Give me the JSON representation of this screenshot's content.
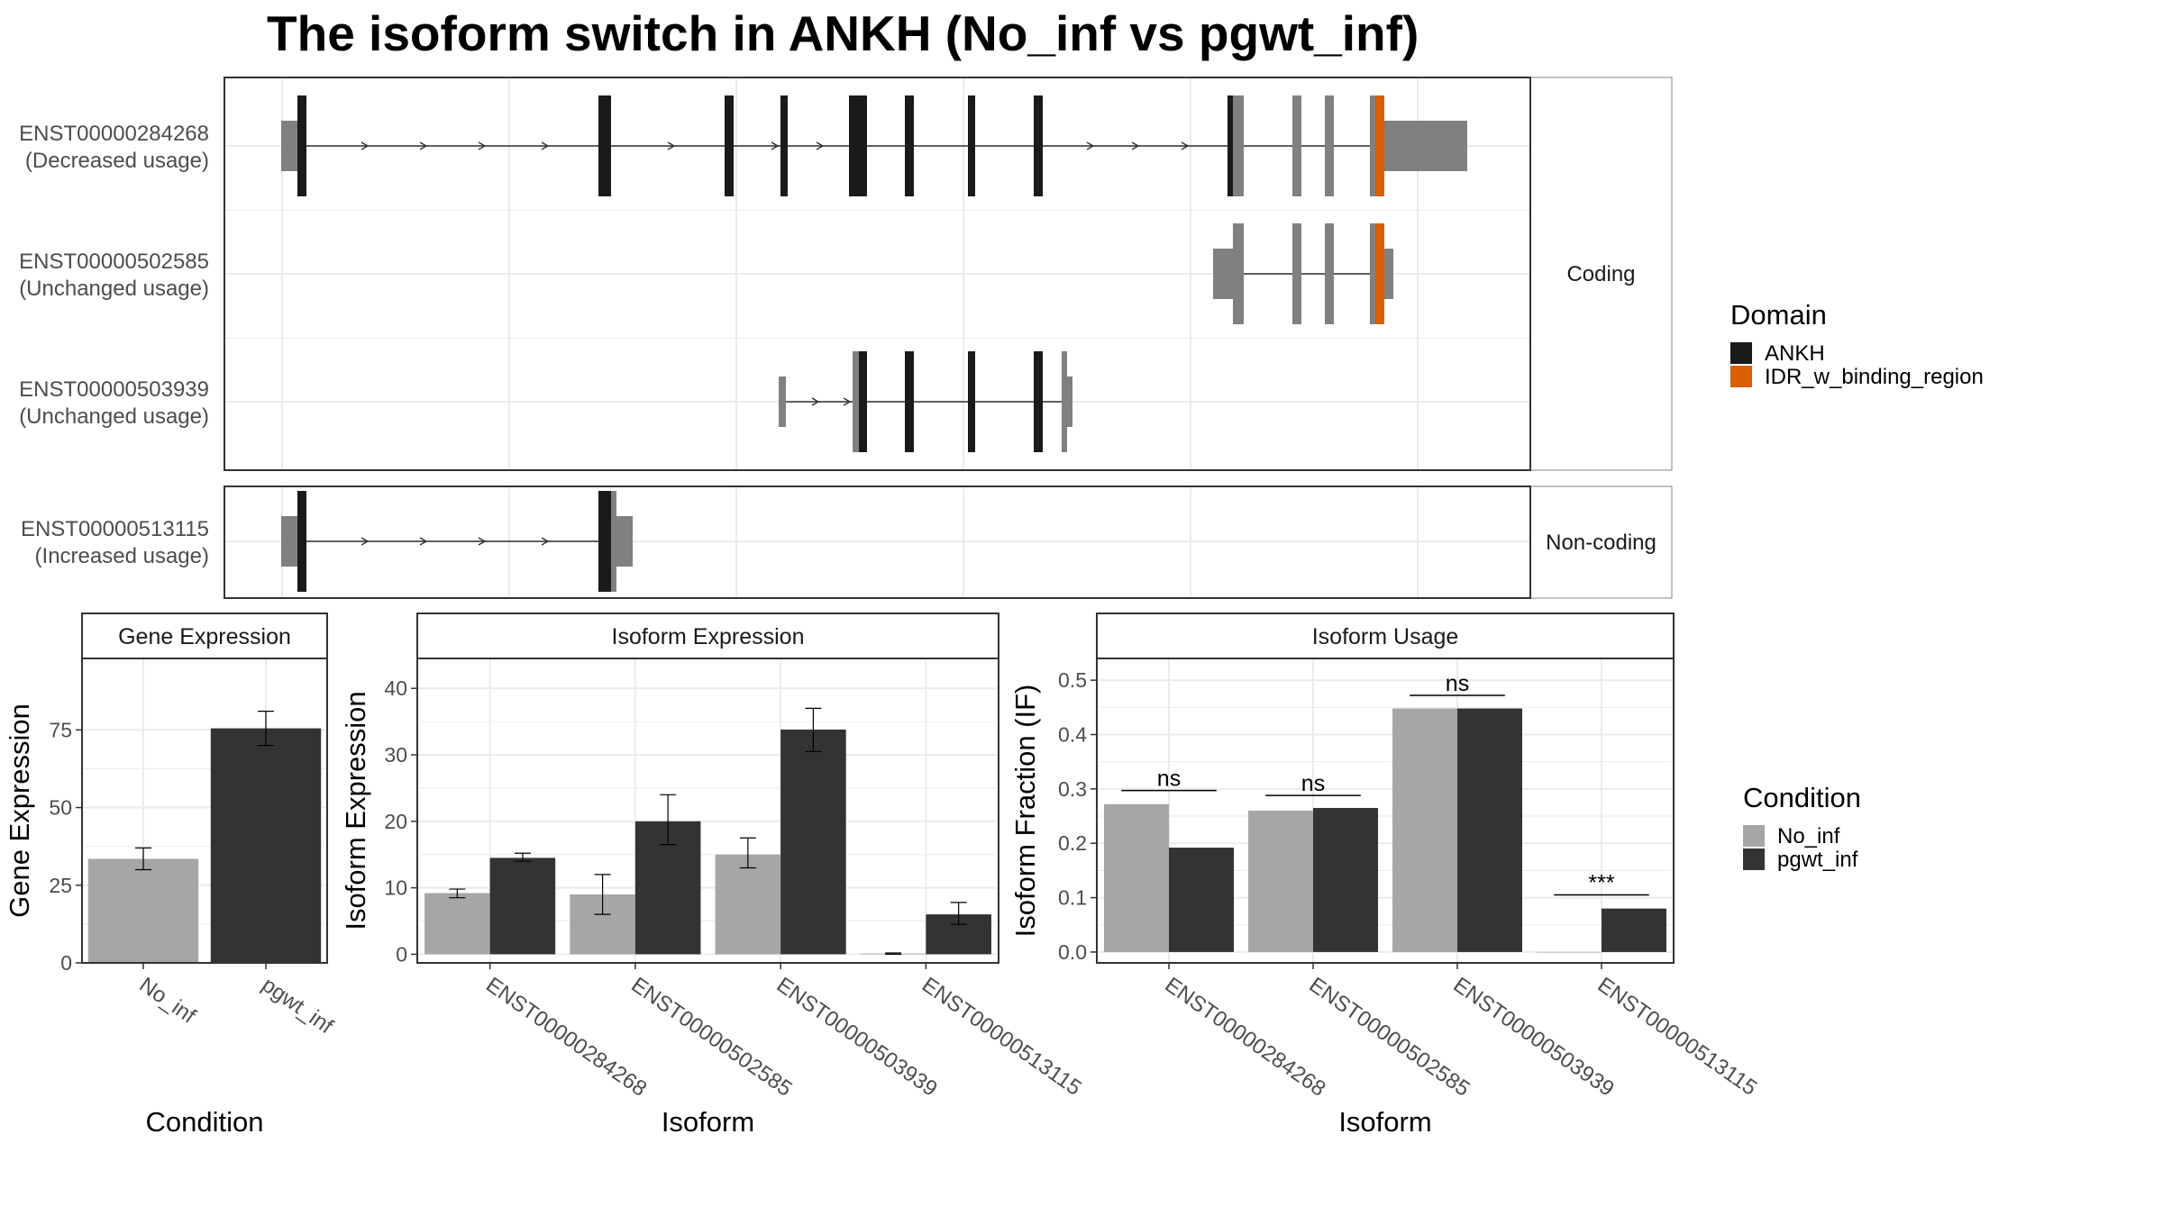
{
  "title": "The isoform switch in ANKH (No_inf vs pgwt_inf)",
  "colors": {
    "ankh": "#1a1a1a",
    "idr": "#d95f02",
    "noncoding_exon": "#808080",
    "no_inf": "#a6a6a6",
    "pgwt_inf": "#333333",
    "grid": "#ebebeb",
    "panel_border": "#333333",
    "strip_bg": "#ffffff"
  },
  "structure": {
    "facets": [
      "Coding",
      "Non-coding"
    ],
    "isoforms": [
      {
        "id": "ENST00000284268",
        "usage": "(Decreased usage)",
        "facet": "Coding"
      },
      {
        "id": "ENST00000502585",
        "usage": "(Unchanged usage)",
        "facet": "Coding"
      },
      {
        "id": "ENST00000503939",
        "usage": "(Unchanged usage)",
        "facet": "Coding"
      },
      {
        "id": "ENST00000513115",
        "usage": "(Increased usage)",
        "facet": "Non-coding"
      }
    ],
    "legend": {
      "title": "Domain",
      "items": [
        {
          "label": "ANKH",
          "color": "#1a1a1a"
        },
        {
          "label": "IDR_w_binding_region",
          "color": "#d95f02"
        }
      ]
    }
  },
  "chart_data": [
    {
      "type": "bar",
      "panel": "Gene Expression",
      "xlabel": "Condition",
      "ylabel": "Gene Expression",
      "categories": [
        "No_inf",
        "pgwt_inf"
      ],
      "values": [
        33.5,
        75.5
      ],
      "errors": [
        [
          30,
          37
        ],
        [
          70,
          81
        ]
      ],
      "ylim": [
        0,
        98
      ],
      "yticks": [
        0,
        25,
        50,
        75
      ]
    },
    {
      "type": "bar",
      "panel": "Isoform Expression",
      "xlabel": "Isoform",
      "ylabel": "Isoform Expression",
      "categories": [
        "ENST00000284268",
        "ENST00000502585",
        "ENST00000503939",
        "ENST00000513115"
      ],
      "series": [
        {
          "name": "No_inf",
          "values": [
            9.2,
            9.0,
            15.0,
            0.1
          ],
          "errors": [
            [
              8.5,
              9.8
            ],
            [
              6.0,
              12.0
            ],
            [
              13.0,
              17.5
            ],
            [
              0.0,
              0.2
            ]
          ]
        },
        {
          "name": "pgwt_inf",
          "values": [
            14.5,
            20.0,
            33.8,
            6.0
          ],
          "errors": [
            [
              14.0,
              15.2
            ],
            [
              16.5,
              24.0
            ],
            [
              30.5,
              37.0
            ],
            [
              4.5,
              7.8
            ]
          ]
        }
      ],
      "ylim": [
        -1.3,
        44.5
      ],
      "yticks": [
        0,
        10,
        20,
        30,
        40
      ]
    },
    {
      "type": "bar",
      "panel": "Isoform Usage",
      "xlabel": "Isoform",
      "ylabel": "Isoform Fraction (IF)",
      "categories": [
        "ENST00000284268",
        "ENST00000502585",
        "ENST00000503939",
        "ENST00000513115"
      ],
      "series": [
        {
          "name": "No_inf",
          "values": [
            0.272,
            0.26,
            0.448,
            0.0
          ]
        },
        {
          "name": "pgwt_inf",
          "values": [
            0.192,
            0.265,
            0.448,
            0.08
          ]
        }
      ],
      "significance": [
        "ns",
        "ns",
        "ns",
        "***"
      ],
      "sig_y": [
        0.297,
        0.288,
        0.472,
        0.105
      ],
      "ylim": [
        -0.02,
        0.54
      ],
      "yticks": [
        0.0,
        0.1,
        0.2,
        0.3,
        0.4,
        0.5
      ],
      "legend": {
        "title": "Condition",
        "items": [
          "No_inf",
          "pgwt_inf"
        ]
      }
    }
  ]
}
